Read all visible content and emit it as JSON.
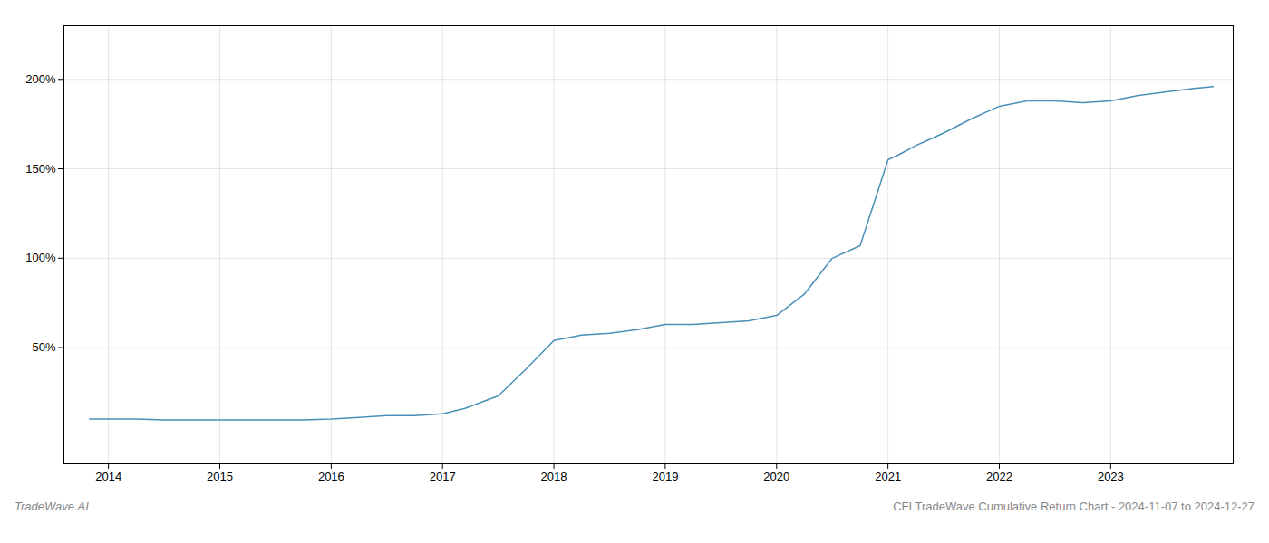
{
  "chart_data": {
    "type": "line",
    "title": "CFI TradeWave Cumulative Return Chart - 2024-11-07 to 2024-12-27",
    "annotations": [
      "TradeWave.AI"
    ],
    "x": [
      2013.83,
      2014.0,
      2014.25,
      2014.5,
      2014.75,
      2015.0,
      2015.25,
      2015.5,
      2015.75,
      2016.0,
      2016.25,
      2016.5,
      2016.75,
      2017.0,
      2017.2,
      2017.5,
      2017.75,
      2018.0,
      2018.25,
      2018.5,
      2018.75,
      2019.0,
      2019.25,
      2019.5,
      2019.75,
      2020.0,
      2020.25,
      2020.5,
      2020.75,
      2021.0,
      2021.1,
      2021.25,
      2021.5,
      2021.75,
      2022.0,
      2022.25,
      2022.5,
      2022.75,
      2023.0,
      2023.25,
      2023.5,
      2023.75,
      2023.92
    ],
    "values": [
      10,
      10,
      10,
      9.5,
      9.5,
      9.5,
      9.5,
      9.5,
      9.5,
      10,
      11,
      12,
      12,
      13,
      16,
      23,
      38,
      54,
      57,
      58,
      60,
      63,
      63,
      64,
      65,
      68,
      80,
      100,
      107,
      155,
      158,
      163,
      170,
      178,
      185,
      188,
      188,
      187,
      188,
      191,
      193,
      195,
      196
    ],
    "color": "#4a90b8",
    "xlim": [
      2013.6,
      2024.1
    ],
    "xticks": [
      2014,
      2015,
      2016,
      2017,
      2018,
      2019,
      2020,
      2021,
      2022,
      2023
    ],
    "ylim": [
      -15,
      230
    ],
    "yticks": [
      {
        "value": 50,
        "label": "50%"
      },
      {
        "value": 100,
        "label": "100%"
      },
      {
        "value": 150,
        "label": "150%"
      },
      {
        "value": 200,
        "label": "200%"
      }
    ],
    "grid": true
  }
}
